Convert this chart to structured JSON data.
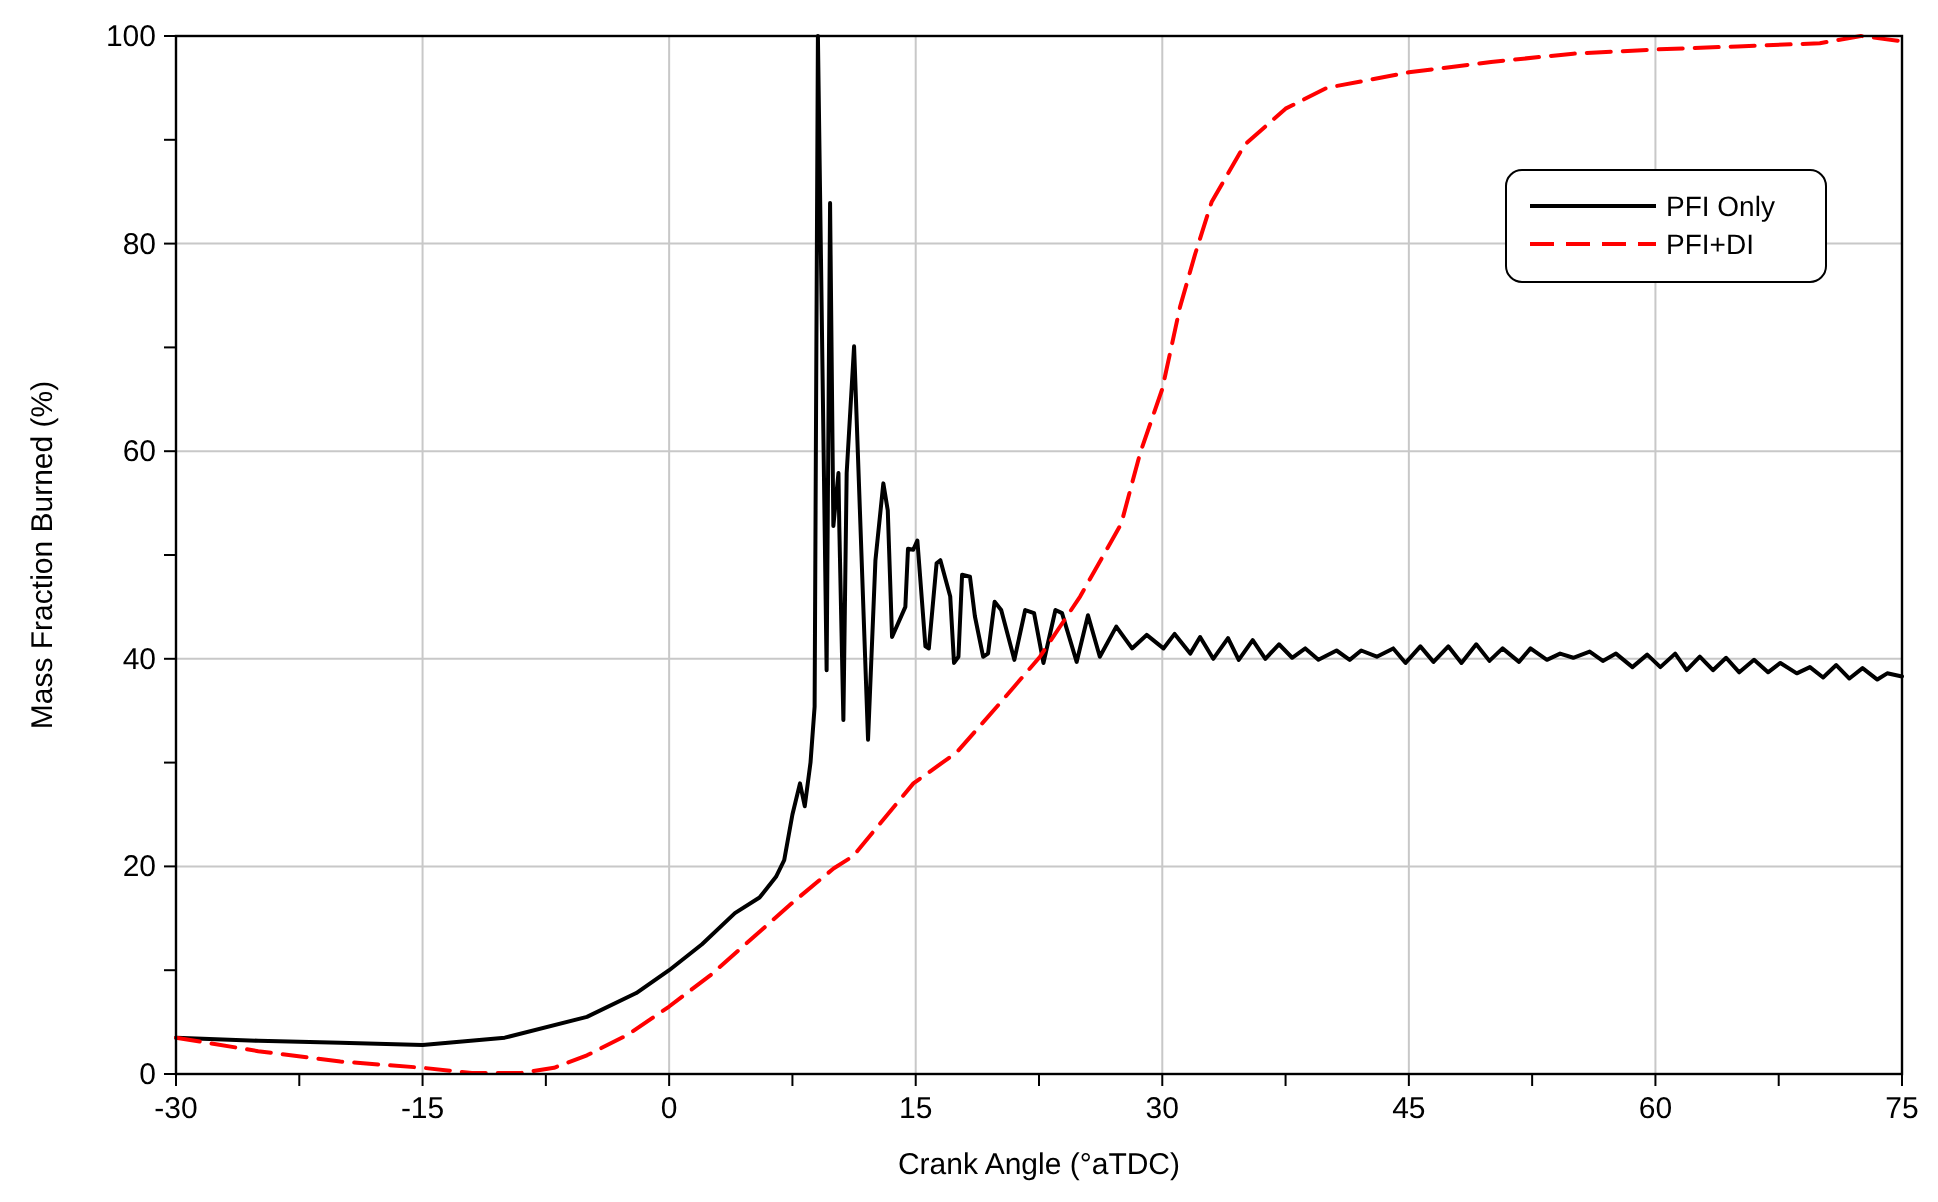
{
  "chart_data": {
    "type": "line",
    "xlabel": "Crank Angle (°aTDC)",
    "ylabel": "Mass Fraction Burned (%)",
    "xlim": [
      -30,
      75
    ],
    "ylim": [
      0,
      100
    ],
    "xticks": [
      -30,
      {
        "value": -22.5,
        "label": null
      },
      -15,
      {
        "value": -7.5,
        "label": null
      },
      0,
      {
        "value": 7.5,
        "label": null
      },
      15,
      {
        "value": 22.5,
        "label": null
      },
      30,
      {
        "value": 37.5,
        "label": null
      },
      45,
      {
        "value": 52.5,
        "label": null
      },
      60,
      {
        "value": 67.5,
        "label": null
      },
      75
    ],
    "yticks": [
      0,
      {
        "value": 10,
        "label": null
      },
      20,
      {
        "value": 30,
        "label": null
      },
      40,
      {
        "value": 50,
        "label": null
      },
      60,
      {
        "value": 70,
        "label": null
      },
      80,
      {
        "value": 90,
        "label": null
      },
      100
    ],
    "grid": true,
    "legend": "top right",
    "marker": "none",
    "series": [
      {
        "name": "PFI Only",
        "color": "#000000",
        "line_style": "solid",
        "x": [
          -30,
          -25,
          -20,
          -15,
          -10,
          -5,
          -2,
          0,
          2,
          4,
          5.5,
          6.5,
          7,
          7.5,
          7.96,
          8.25,
          8.6,
          8.85,
          9.05,
          9.58,
          9.79,
          9.99,
          10.3,
          10.35,
          10.6,
          10.8,
          11.25,
          12.1,
          12.55,
          13.03,
          13.3,
          13.56,
          14.37,
          14.53,
          14.85,
          15.1,
          15.59,
          15.8,
          16.27,
          16.5,
          17.1,
          17.33,
          17.6,
          17.82,
          18.3,
          18.6,
          19.1,
          19.4,
          19.8,
          20.2,
          21.0,
          21.66,
          22.2,
          22.77,
          23.5,
          23.9,
          24.79,
          25.48,
          26.2,
          27.2,
          28.16,
          29.05,
          30.07,
          30.75,
          31.7,
          32.3,
          33.1,
          34.0,
          34.65,
          35.5,
          36.27,
          37.1,
          37.9,
          38.7,
          39.5,
          40.6,
          41.4,
          42.1,
          43.05,
          44.05,
          44.8,
          45.7,
          46.5,
          47.4,
          48.2,
          49.1,
          49.9,
          50.7,
          51.7,
          52.4,
          53.4,
          54.2,
          55.0,
          56.0,
          56.8,
          57.6,
          58.6,
          59.5,
          60.3,
          61.2,
          61.9,
          62.7,
          63.5,
          64.3,
          65.1,
          66.0,
          66.85,
          67.6,
          68.6,
          69.4,
          70.2,
          71.0,
          71.8,
          72.6,
          73.5,
          74.1,
          75
        ],
        "values": [
          3.5,
          3.2,
          3.0,
          2.8,
          3.5,
          5.5,
          7.8,
          10,
          12.5,
          15.5,
          17,
          19,
          20.6,
          25,
          28,
          25.8,
          30,
          35.4,
          100,
          38.9,
          83.9,
          52.8,
          57.9,
          52.8,
          34.1,
          57.9,
          70.1,
          32.2,
          49.5,
          56.9,
          54.3,
          42.1,
          45.0,
          50.6,
          50.5,
          51.4,
          41.2,
          41,
          49.2,
          49.5,
          46,
          39.6,
          40.2,
          48.1,
          47.9,
          44.1,
          40.2,
          40.5,
          45.5,
          44.7,
          39.9,
          44.7,
          44.4,
          39.6,
          44.7,
          44.4,
          39.7,
          44.2,
          40.2,
          43.1,
          41.0,
          42.3,
          41.0,
          42.4,
          40.5,
          42.1,
          40.0,
          42.0,
          39.9,
          41.8,
          40.0,
          41.4,
          40.1,
          41.0,
          39.9,
          40.8,
          39.9,
          40.8,
          40.2,
          41.0,
          39.6,
          41.2,
          39.7,
          41.2,
          39.6,
          41.4,
          39.8,
          41.0,
          39.7,
          41.0,
          39.9,
          40.5,
          40.1,
          40.7,
          39.8,
          40.5,
          39.2,
          40.4,
          39.2,
          40.5,
          38.9,
          40.2,
          38.9,
          40.1,
          38.7,
          39.9,
          38.7,
          39.6,
          38.6,
          39.2,
          38.2,
          39.4,
          38.1,
          39.1,
          38.0,
          38.6,
          38.3
        ]
      },
      {
        "name": "PFI+DI",
        "color": "#ff0000",
        "line_style": "dashed",
        "x": [
          -30,
          -25,
          -20,
          -15,
          -12,
          -9,
          -7,
          -5,
          -2.5,
          0,
          2.5,
          5,
          7.5,
          10,
          11.2,
          12.5,
          14.86,
          17.5,
          20,
          22.56,
          25,
          27.5,
          28.65,
          30,
          31.08,
          32,
          33,
          35,
          37.5,
          40,
          45,
          50,
          55,
          60,
          65,
          70,
          72.5,
          75
        ],
        "values": [
          3.5,
          2.2,
          1.2,
          0.6,
          0.1,
          0.1,
          0.6,
          1.8,
          3.8,
          6.5,
          9.5,
          13,
          16.5,
          19.8,
          21,
          23.5,
          28,
          31,
          35.5,
          40.2,
          46,
          53,
          59.8,
          66,
          73.9,
          79,
          84,
          89.5,
          93,
          95,
          96.5,
          97.5,
          98.3,
          98.7,
          99,
          99.3,
          100,
          99.5
        ]
      }
    ]
  }
}
